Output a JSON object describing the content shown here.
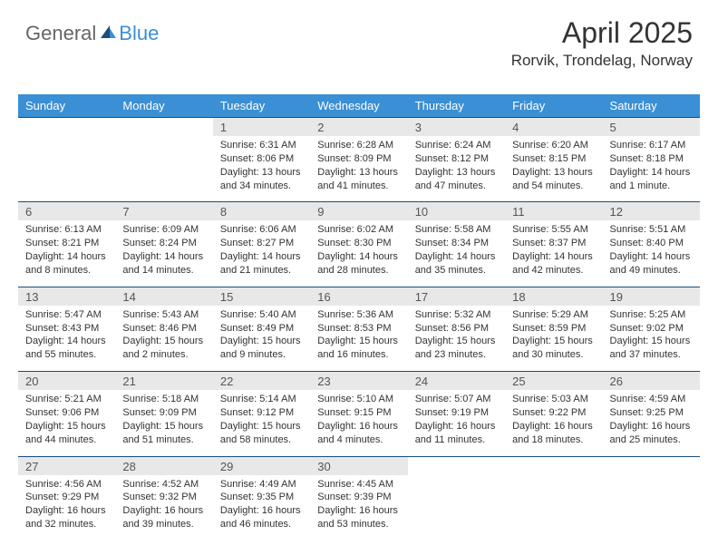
{
  "logo": {
    "part1": "General",
    "part2": "Blue"
  },
  "title": "April 2025",
  "location": "Rorvik, Trondelag, Norway",
  "colors": {
    "header_bg": "#3b8fd4",
    "daynum_bg": "#e8e8e8",
    "row_border": "#1a4d7a",
    "text": "#333333",
    "logo_gray": "#666666"
  },
  "weekdays": [
    "Sunday",
    "Monday",
    "Tuesday",
    "Wednesday",
    "Thursday",
    "Friday",
    "Saturday"
  ],
  "weeks": [
    [
      null,
      null,
      {
        "n": "1",
        "sr": "Sunrise: 6:31 AM",
        "ss": "Sunset: 8:06 PM",
        "dl": "Daylight: 13 hours and 34 minutes."
      },
      {
        "n": "2",
        "sr": "Sunrise: 6:28 AM",
        "ss": "Sunset: 8:09 PM",
        "dl": "Daylight: 13 hours and 41 minutes."
      },
      {
        "n": "3",
        "sr": "Sunrise: 6:24 AM",
        "ss": "Sunset: 8:12 PM",
        "dl": "Daylight: 13 hours and 47 minutes."
      },
      {
        "n": "4",
        "sr": "Sunrise: 6:20 AM",
        "ss": "Sunset: 8:15 PM",
        "dl": "Daylight: 13 hours and 54 minutes."
      },
      {
        "n": "5",
        "sr": "Sunrise: 6:17 AM",
        "ss": "Sunset: 8:18 PM",
        "dl": "Daylight: 14 hours and 1 minute."
      }
    ],
    [
      {
        "n": "6",
        "sr": "Sunrise: 6:13 AM",
        "ss": "Sunset: 8:21 PM",
        "dl": "Daylight: 14 hours and 8 minutes."
      },
      {
        "n": "7",
        "sr": "Sunrise: 6:09 AM",
        "ss": "Sunset: 8:24 PM",
        "dl": "Daylight: 14 hours and 14 minutes."
      },
      {
        "n": "8",
        "sr": "Sunrise: 6:06 AM",
        "ss": "Sunset: 8:27 PM",
        "dl": "Daylight: 14 hours and 21 minutes."
      },
      {
        "n": "9",
        "sr": "Sunrise: 6:02 AM",
        "ss": "Sunset: 8:30 PM",
        "dl": "Daylight: 14 hours and 28 minutes."
      },
      {
        "n": "10",
        "sr": "Sunrise: 5:58 AM",
        "ss": "Sunset: 8:34 PM",
        "dl": "Daylight: 14 hours and 35 minutes."
      },
      {
        "n": "11",
        "sr": "Sunrise: 5:55 AM",
        "ss": "Sunset: 8:37 PM",
        "dl": "Daylight: 14 hours and 42 minutes."
      },
      {
        "n": "12",
        "sr": "Sunrise: 5:51 AM",
        "ss": "Sunset: 8:40 PM",
        "dl": "Daylight: 14 hours and 49 minutes."
      }
    ],
    [
      {
        "n": "13",
        "sr": "Sunrise: 5:47 AM",
        "ss": "Sunset: 8:43 PM",
        "dl": "Daylight: 14 hours and 55 minutes."
      },
      {
        "n": "14",
        "sr": "Sunrise: 5:43 AM",
        "ss": "Sunset: 8:46 PM",
        "dl": "Daylight: 15 hours and 2 minutes."
      },
      {
        "n": "15",
        "sr": "Sunrise: 5:40 AM",
        "ss": "Sunset: 8:49 PM",
        "dl": "Daylight: 15 hours and 9 minutes."
      },
      {
        "n": "16",
        "sr": "Sunrise: 5:36 AM",
        "ss": "Sunset: 8:53 PM",
        "dl": "Daylight: 15 hours and 16 minutes."
      },
      {
        "n": "17",
        "sr": "Sunrise: 5:32 AM",
        "ss": "Sunset: 8:56 PM",
        "dl": "Daylight: 15 hours and 23 minutes."
      },
      {
        "n": "18",
        "sr": "Sunrise: 5:29 AM",
        "ss": "Sunset: 8:59 PM",
        "dl": "Daylight: 15 hours and 30 minutes."
      },
      {
        "n": "19",
        "sr": "Sunrise: 5:25 AM",
        "ss": "Sunset: 9:02 PM",
        "dl": "Daylight: 15 hours and 37 minutes."
      }
    ],
    [
      {
        "n": "20",
        "sr": "Sunrise: 5:21 AM",
        "ss": "Sunset: 9:06 PM",
        "dl": "Daylight: 15 hours and 44 minutes."
      },
      {
        "n": "21",
        "sr": "Sunrise: 5:18 AM",
        "ss": "Sunset: 9:09 PM",
        "dl": "Daylight: 15 hours and 51 minutes."
      },
      {
        "n": "22",
        "sr": "Sunrise: 5:14 AM",
        "ss": "Sunset: 9:12 PM",
        "dl": "Daylight: 15 hours and 58 minutes."
      },
      {
        "n": "23",
        "sr": "Sunrise: 5:10 AM",
        "ss": "Sunset: 9:15 PM",
        "dl": "Daylight: 16 hours and 4 minutes."
      },
      {
        "n": "24",
        "sr": "Sunrise: 5:07 AM",
        "ss": "Sunset: 9:19 PM",
        "dl": "Daylight: 16 hours and 11 minutes."
      },
      {
        "n": "25",
        "sr": "Sunrise: 5:03 AM",
        "ss": "Sunset: 9:22 PM",
        "dl": "Daylight: 16 hours and 18 minutes."
      },
      {
        "n": "26",
        "sr": "Sunrise: 4:59 AM",
        "ss": "Sunset: 9:25 PM",
        "dl": "Daylight: 16 hours and 25 minutes."
      }
    ],
    [
      {
        "n": "27",
        "sr": "Sunrise: 4:56 AM",
        "ss": "Sunset: 9:29 PM",
        "dl": "Daylight: 16 hours and 32 minutes."
      },
      {
        "n": "28",
        "sr": "Sunrise: 4:52 AM",
        "ss": "Sunset: 9:32 PM",
        "dl": "Daylight: 16 hours and 39 minutes."
      },
      {
        "n": "29",
        "sr": "Sunrise: 4:49 AM",
        "ss": "Sunset: 9:35 PM",
        "dl": "Daylight: 16 hours and 46 minutes."
      },
      {
        "n": "30",
        "sr": "Sunrise: 4:45 AM",
        "ss": "Sunset: 9:39 PM",
        "dl": "Daylight: 16 hours and 53 minutes."
      },
      null,
      null,
      null
    ]
  ]
}
